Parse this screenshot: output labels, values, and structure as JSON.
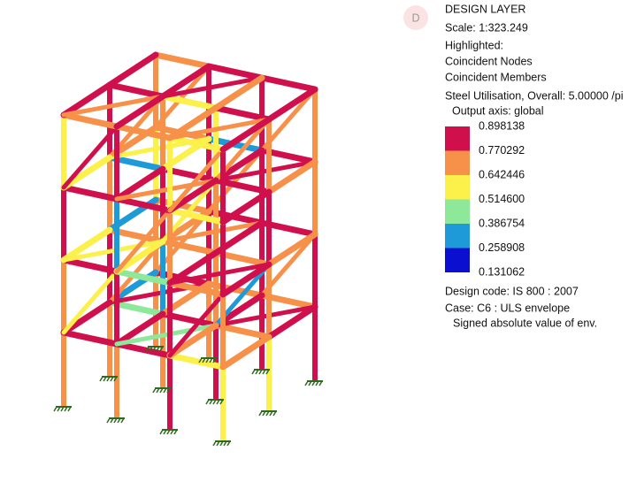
{
  "badge": "D",
  "header": {
    "title": "DESIGN LAYER",
    "scale": "Scale: 1:323.249"
  },
  "highlighted": {
    "label": "Highlighted:",
    "items": [
      "Coincident Nodes",
      "Coincident Members"
    ]
  },
  "result": {
    "title": "Steel Utilisation, Overall: 5.00000 /pi",
    "axis": "Output axis: global"
  },
  "legend": {
    "labels": [
      "0.898138",
      "0.770292",
      "0.642446",
      "0.514600",
      "0.386754",
      "0.258908",
      "0.131062"
    ],
    "colors": [
      "#d0104c",
      "#f7914a",
      "#fcf04a",
      "#8ee89a",
      "#1f9ad8",
      "#0b0fd0"
    ]
  },
  "footer": {
    "code": "Design code: IS 800 : 2007",
    "case": "Case: C6 : ULS envelope",
    "note": "Signed absolute value of env."
  }
}
